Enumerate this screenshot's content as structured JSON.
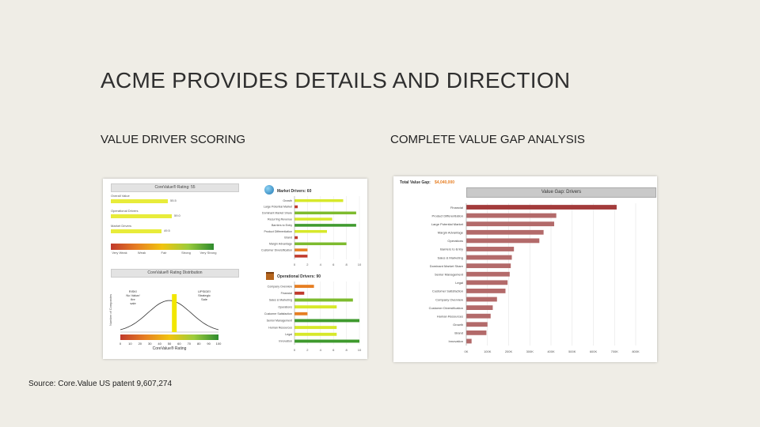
{
  "slide": {
    "title": "ACME PROVIDES DETAILS AND DIRECTION",
    "left_heading": "VALUE DRIVER SCORING",
    "right_heading": "COMPLETE VALUE GAP ANALYSIS",
    "source": "Source: Core.Value US patent 9,607,274"
  },
  "left_panel": {
    "rating_header": "CoreValue® Rating: 55",
    "rating_rows": [
      {
        "label": "Overall Value",
        "value": "55.5",
        "fill": 0.555
      },
      {
        "label": "Operational Drivers",
        "value": "59.0",
        "fill": 0.59
      },
      {
        "label": "Market Drivers",
        "value": "49.5",
        "fill": 0.495
      }
    ],
    "scale_labels": [
      "Very Weak",
      "Weak",
      "Fair",
      "Strong",
      "Very Strong"
    ],
    "distribution_header": "CoreValue® Rating Distribution",
    "distribution": {
      "ylabel": "Number of Companies",
      "xlabel": "CoreValue® Rating",
      "risk_label": "RISK! No Value/ fire sale",
      "upside_label": "UPSIDE! Strategic Sale",
      "ticks": [
        "0",
        "10",
        "20",
        "30",
        "40",
        "50",
        "60",
        "70",
        "80",
        "90",
        "100"
      ],
      "marker_value": 55
    },
    "market_drivers": {
      "title": "Market Drivers: 60",
      "x_ticks": [
        "0",
        "2",
        "4",
        "6",
        "8",
        "10"
      ],
      "items": [
        {
          "label": "Growth",
          "value": 7.5,
          "color": "#d7e82a"
        },
        {
          "label": "Large Potential Market",
          "value": 0.5,
          "color": "#c0392b"
        },
        {
          "label": "Dominant Market Share",
          "value": 9.5,
          "color": "#7dbb2e"
        },
        {
          "label": "Recurring Revenue",
          "value": 5.8,
          "color": "#d7e82a"
        },
        {
          "label": "Barriers to Entry",
          "value": 9.5,
          "color": "#3f9a2e"
        },
        {
          "label": "Product Differentiation",
          "value": 5.0,
          "color": "#d7e82a"
        },
        {
          "label": "Brand",
          "value": 0.5,
          "color": "#c0392b"
        },
        {
          "label": "Margin Advantage",
          "value": 8.0,
          "color": "#7dbb2e"
        },
        {
          "label": "Customer Diversification",
          "value": 2.0,
          "color": "#e67e22"
        },
        {
          "label": "",
          "value": 2.0,
          "color": "#c0392b"
        }
      ]
    },
    "operational_drivers": {
      "title": "Operational Drivers: 90",
      "x_ticks": [
        "0",
        "2",
        "4",
        "6",
        "8",
        "10"
      ],
      "items": [
        {
          "label": "Company Overview",
          "value": 3.0,
          "color": "#e67e22"
        },
        {
          "label": "Financial",
          "value": 1.5,
          "color": "#c0392b"
        },
        {
          "label": "Sales & Marketing",
          "value": 9.0,
          "color": "#7dbb2e"
        },
        {
          "label": "Operations",
          "value": 6.5,
          "color": "#d7e82a"
        },
        {
          "label": "Customer Satisfaction",
          "value": 2.0,
          "color": "#e67e22"
        },
        {
          "label": "Senior Management",
          "value": 10.0,
          "color": "#3f9a2e"
        },
        {
          "label": "Human Resources",
          "value": 6.5,
          "color": "#d7e82a"
        },
        {
          "label": "Legal",
          "value": 6.5,
          "color": "#d7e82a"
        },
        {
          "label": "Innovation",
          "value": 10.0,
          "color": "#3f9a2e"
        }
      ]
    }
  },
  "right_panel": {
    "total_label": "Total Value Gap:",
    "total_value": "$4,040,000",
    "chart_header": "Value Gap: Drivers",
    "x_ticks": [
      "0K",
      "100K",
      "200K",
      "300K",
      "400K",
      "500K",
      "600K",
      "700K",
      "800K"
    ],
    "bar_color": "#b36a6a",
    "top_color": "#a33b3b",
    "items": [
      {
        "label": "Financial",
        "value": 710
      },
      {
        "label": "Product Differentiation",
        "value": 425
      },
      {
        "label": "Large Potential Market",
        "value": 415
      },
      {
        "label": "Margin Advantage",
        "value": 365
      },
      {
        "label": "Operations",
        "value": 345
      },
      {
        "label": "Barriers to Entry",
        "value": 225
      },
      {
        "label": "Sales & Marketing",
        "value": 215
      },
      {
        "label": "Dominant Market Share",
        "value": 210
      },
      {
        "label": "Senior Management",
        "value": 205
      },
      {
        "label": "Legal",
        "value": 195
      },
      {
        "label": "Customer Satisfaction",
        "value": 185
      },
      {
        "label": "Company Overview",
        "value": 145
      },
      {
        "label": "Customer Diversification",
        "value": 125
      },
      {
        "label": "Human Resources",
        "value": 115
      },
      {
        "label": "Growth",
        "value": 100
      },
      {
        "label": "Brand",
        "value": 95
      },
      {
        "label": "Innovation",
        "value": 25
      }
    ]
  }
}
